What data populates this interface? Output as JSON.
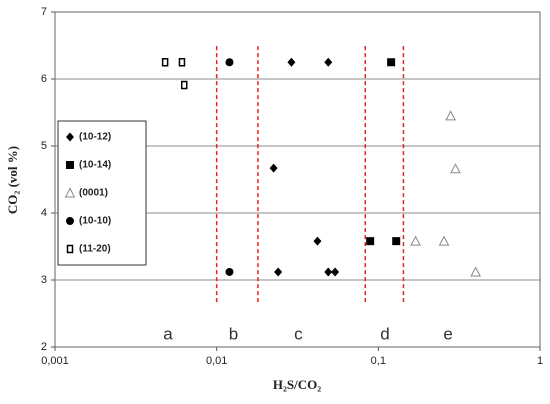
{
  "chart_data": {
    "type": "scatter",
    "x_label": "H₂S/CO₂",
    "y_label": "CO₂ (vol %)",
    "xscale": "log",
    "xlim": [
      0.001,
      1
    ],
    "ylim": [
      2,
      7
    ],
    "xticks": [
      {
        "value": 0.001,
        "label": "0,001"
      },
      {
        "value": 0.01,
        "label": "0,01"
      },
      {
        "value": 0.1,
        "label": "0,1"
      },
      1
    ],
    "yticks": [
      2,
      3,
      4,
      5,
      6,
      7
    ],
    "grid": true,
    "legend": "left",
    "series": [
      {
        "name": "(10-12)",
        "marker": "diamond",
        "color": "#000000",
        "x": [
          0.029,
          0.049,
          0.0225,
          0.042,
          0.024,
          0.049,
          0.054
        ],
        "values": [
          6.25,
          6.25,
          4.67,
          3.58,
          3.12,
          3.12,
          3.12
        ]
      },
      {
        "name": "(10-14)",
        "marker": "square",
        "color": "#000000",
        "x": [
          0.12,
          0.089,
          0.129
        ],
        "values": [
          6.25,
          3.58,
          3.58
        ]
      },
      {
        "name": "(0001)",
        "marker": "triangle",
        "color": "#888888",
        "x": [
          0.28,
          0.3,
          0.17,
          0.255,
          0.4
        ],
        "values": [
          5.45,
          4.66,
          3.58,
          3.58,
          3.12
        ]
      },
      {
        "name": "(10-10)",
        "marker": "circle",
        "color": "#000000",
        "x": [
          0.012,
          0.012
        ],
        "values": [
          6.25,
          3.12
        ]
      },
      {
        "name": "(11-20)",
        "marker": "open-square",
        "color": "#000000",
        "x": [
          0.0048,
          0.0061,
          0.0063
        ],
        "values": [
          6.25,
          6.25,
          5.91
        ]
      }
    ],
    "dividers": {
      "color": "#e8201e",
      "x": [
        0.01,
        0.018,
        0.083,
        0.143
      ],
      "y_range": [
        2.67,
        6.52
      ]
    },
    "regions": [
      {
        "label": "a",
        "x": 0.005,
        "y": 2.18
      },
      {
        "label": "b",
        "x": 0.0127,
        "y": 2.18
      },
      {
        "label": "c",
        "x": 0.032,
        "y": 2.18
      },
      {
        "label": "d",
        "x": 0.11,
        "y": 2.18
      },
      {
        "label": "e",
        "x": 0.27,
        "y": 2.18
      }
    ]
  }
}
